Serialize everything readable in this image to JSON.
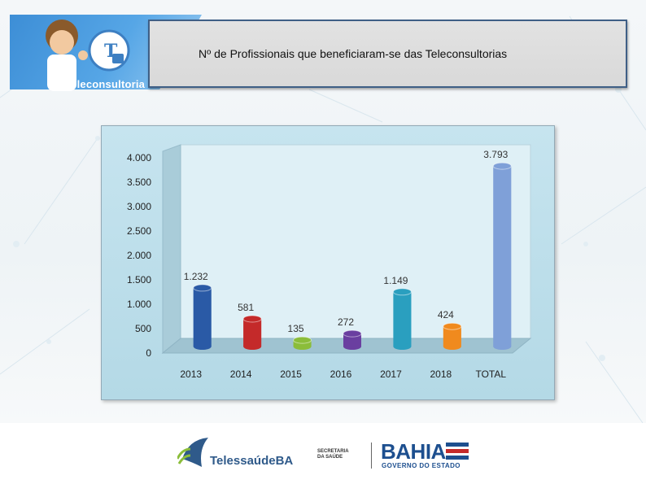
{
  "header": {
    "logo_label": "Teleconsultoria",
    "title": "Nº de Profissionais que beneficiaram-se das Teleconsultorias"
  },
  "chart_data": {
    "type": "bar",
    "title": "",
    "xlabel": "",
    "ylabel": "",
    "categories": [
      "2013",
      "2014",
      "2015",
      "2016",
      "2017",
      "2018",
      "TOTAL"
    ],
    "values": [
      1232,
      581,
      135,
      272,
      1149,
      424,
      3793
    ],
    "value_labels": [
      "1.232",
      "581",
      "135",
      "272",
      "1.149",
      "424",
      "3.793"
    ],
    "ylim": [
      0,
      4000
    ],
    "y_ticks": [
      0,
      500,
      1000,
      1500,
      2000,
      2500,
      3000,
      3500,
      4000
    ],
    "y_tick_labels": [
      "0",
      "500",
      "1.000",
      "1.500",
      "2.000",
      "2.500",
      "3.000",
      "3.500",
      "4.000"
    ],
    "colors": [
      "#2a5aa6",
      "#c42a2a",
      "#8bbd3a",
      "#6a3fa0",
      "#2a9fbf",
      "#f08a1e",
      "#7fa0d8"
    ],
    "grid": false,
    "legend": "none"
  },
  "footer": {
    "telessaude": "TelessaúdeBA",
    "secretaria": "SECRETARIA DA SAÚDE",
    "bahia": "BAHIA",
    "governo": "GOVERNO DO ESTADO"
  }
}
